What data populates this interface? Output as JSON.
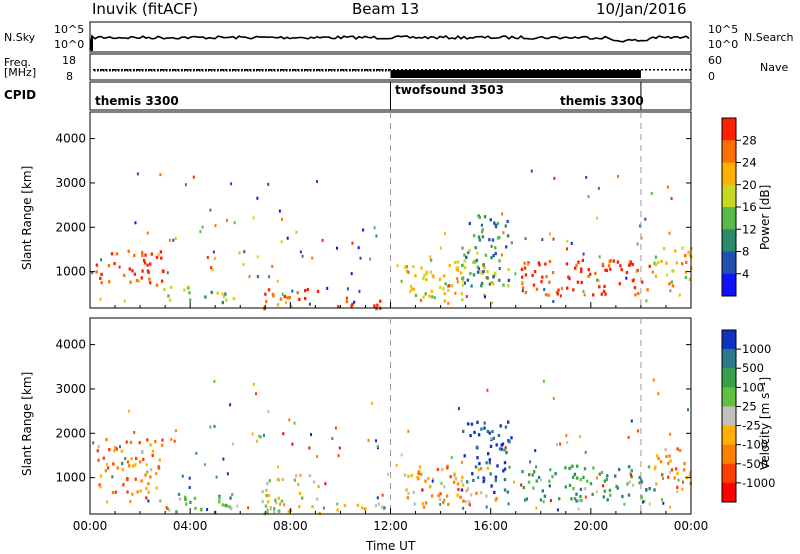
{
  "header": {
    "station": "Inuvik (fitACF)",
    "beam": "Beam 13",
    "date": "10/Jan/2016"
  },
  "top_panels": {
    "nsky_label": "N.Sky",
    "nsky_ticks": [
      "10^5",
      "10^0"
    ],
    "nsearch_label": "N.Search",
    "nsearch_ticks": [
      "10^5",
      "10^0"
    ],
    "freq_label_1": "Freq.",
    "freq_label_2": "[MHz]",
    "freq_ticks": [
      "18",
      "8"
    ],
    "nave_label": "Nave",
    "nave_ticks": [
      "60",
      "0"
    ],
    "cpid_label": "CPID",
    "cpid_segments": [
      {
        "name": "themis 3300",
        "start_h": 0,
        "end_h": 12
      },
      {
        "name": "twofsound 3503",
        "start_h": 12,
        "end_h": 22
      },
      {
        "name": "themis 3300",
        "start_h": 22,
        "end_h": 24
      }
    ]
  },
  "chart_data": [
    {
      "type": "heatmap",
      "quantity": "Power",
      "ylabel": "Slant Range [km]",
      "ylim": [
        180,
        4600
      ],
      "yticks": [
        "1000",
        "2000",
        "3000",
        "4000"
      ],
      "xlim_hours": [
        0,
        24
      ],
      "colorbar_label": "Power [dB]",
      "colorbar_ticks": [
        "4",
        "8",
        "12",
        "16",
        "20",
        "24",
        "28"
      ],
      "colorbar_colors": [
        "#1010ff",
        "#2050b0",
        "#2a8a6a",
        "#58b848",
        "#c8d820",
        "#ffb000",
        "#ff7000",
        "#ff2000"
      ],
      "regions": [
        {
          "t0": 0.2,
          "t1": 2.9,
          "r0": 700,
          "r1": 1500,
          "level": 0.95
        },
        {
          "t0": 2.9,
          "t1": 4.3,
          "r0": 350,
          "r1": 700,
          "level": 0.55
        },
        {
          "t0": 4.5,
          "t1": 5.8,
          "r0": 250,
          "r1": 600,
          "level": 0.45
        },
        {
          "t0": 6.8,
          "t1": 9.2,
          "r0": 200,
          "r1": 650,
          "level": 0.9
        },
        {
          "t0": 9.8,
          "t1": 11.8,
          "r0": 200,
          "r1": 450,
          "level": 0.9
        },
        {
          "t0": 12.5,
          "t1": 16.2,
          "r0": 350,
          "r1": 1300,
          "level": 0.6
        },
        {
          "t0": 14.8,
          "t1": 16.8,
          "r0": 700,
          "r1": 2300,
          "level": 0.35
        },
        {
          "t0": 17.2,
          "t1": 22.5,
          "r0": 500,
          "r1": 1300,
          "level": 0.95
        },
        {
          "t0": 22.5,
          "t1": 24,
          "r0": 700,
          "r1": 1700,
          "level": 0.65
        }
      ]
    },
    {
      "type": "heatmap",
      "quantity": "Velocity",
      "ylabel": "Slant Range [km]",
      "ylim": [
        180,
        4600
      ],
      "yticks": [
        "1000",
        "2000",
        "3000",
        "4000"
      ],
      "xlim_hours": [
        0,
        24
      ],
      "xticks": [
        "00:00",
        "04:00",
        "08:00",
        "12:00",
        "16:00",
        "20:00",
        "00:00"
      ],
      "xlabel": "Time UT",
      "colorbar_label": "Velocity [m s⁻¹]",
      "colorbar_ticks": [
        "1000",
        "500",
        "100",
        "25",
        "-25",
        "-100",
        "-500",
        "-1000"
      ],
      "colorbar_colors": [
        "#1030c0",
        "#2a7a8a",
        "#38a048",
        "#60c040",
        "#c0c0b8",
        "#ffb000",
        "#ff8000",
        "#ff4000",
        "#ff0000"
      ],
      "regions": [
        {
          "t0": 0.2,
          "t1": 2.9,
          "r0": 700,
          "r1": 1900,
          "level": 0.7
        },
        {
          "t0": 2.9,
          "t1": 5.8,
          "r0": 250,
          "r1": 700,
          "level": 0.35
        },
        {
          "t0": 6.8,
          "t1": 9.2,
          "r0": 200,
          "r1": 1100,
          "level": 0.5
        },
        {
          "t0": 9.8,
          "t1": 11.8,
          "r0": 200,
          "r1": 450,
          "level": 0.6
        },
        {
          "t0": 12.5,
          "t1": 16.2,
          "r0": 350,
          "r1": 1300,
          "level": 0.65
        },
        {
          "t0": 14.8,
          "t1": 16.8,
          "r0": 700,
          "r1": 2300,
          "level": 0.05
        },
        {
          "t0": 17.2,
          "t1": 22.5,
          "r0": 500,
          "r1": 1300,
          "level": 0.3
        },
        {
          "t0": 22.5,
          "t1": 24,
          "r0": 700,
          "r1": 1700,
          "level": 0.7
        }
      ]
    }
  ]
}
